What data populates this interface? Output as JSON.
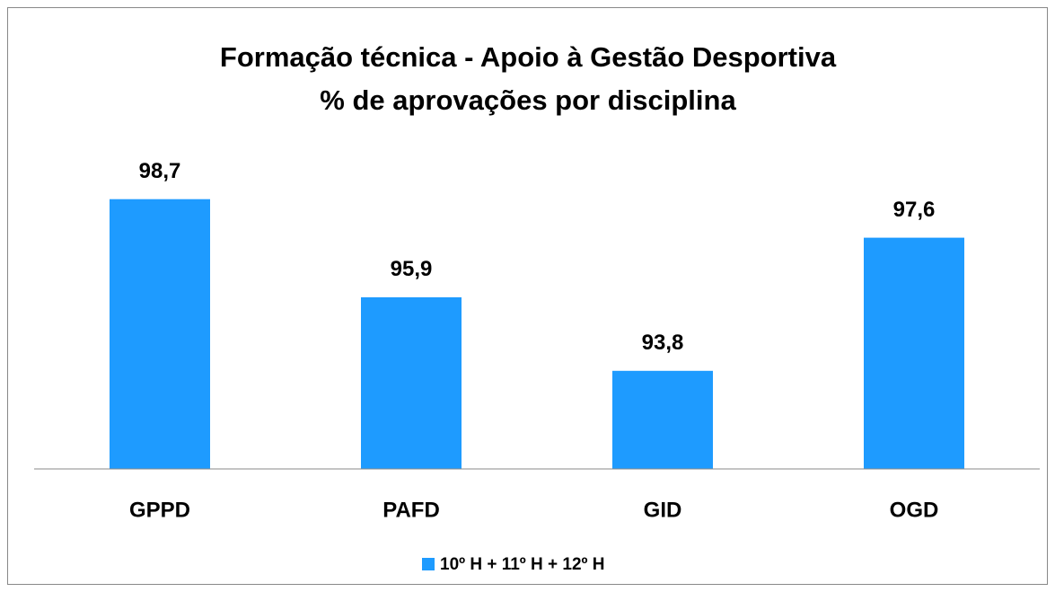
{
  "chart_data": {
    "type": "bar",
    "title": "Formação técnica - Apoio à Gestão Desportiva",
    "subtitle": "% de aprovações por disciplina",
    "categories": [
      "GPPD",
      "PAFD",
      "GID",
      "OGD"
    ],
    "series": [
      {
        "name": "10º H + 11º H + 12º H",
        "color": "#1e9bff",
        "values": [
          98.7,
          95.9,
          93.8,
          97.6
        ],
        "value_labels": [
          "98,7",
          "95,9",
          "93,8",
          "97,6"
        ]
      }
    ],
    "ylim": [
      91,
      100
    ],
    "legend": "bottom"
  }
}
